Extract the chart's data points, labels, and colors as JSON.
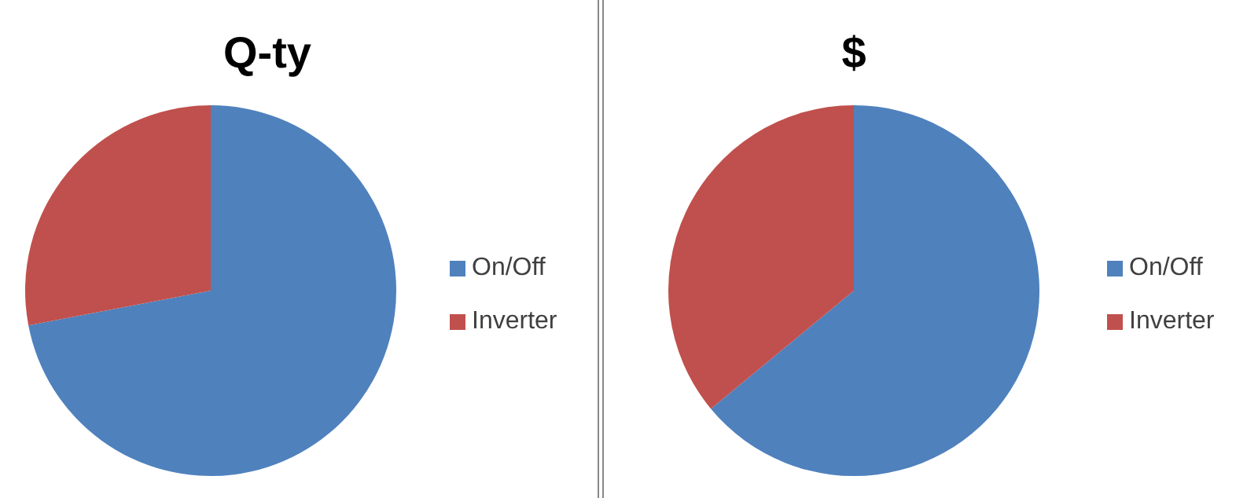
{
  "chart_data": [
    {
      "type": "pie",
      "title": "Q-ty",
      "categories": [
        "On/Off",
        "Inverter"
      ],
      "values": [
        72,
        28
      ],
      "colors": [
        "#4f81bd",
        "#c0504d"
      ],
      "legend": "right"
    },
    {
      "type": "pie",
      "title": "$",
      "categories": [
        "On/Off",
        "Inverter"
      ],
      "values": [
        64,
        36
      ],
      "colors": [
        "#4f81bd",
        "#c0504d"
      ],
      "legend": "right"
    }
  ]
}
